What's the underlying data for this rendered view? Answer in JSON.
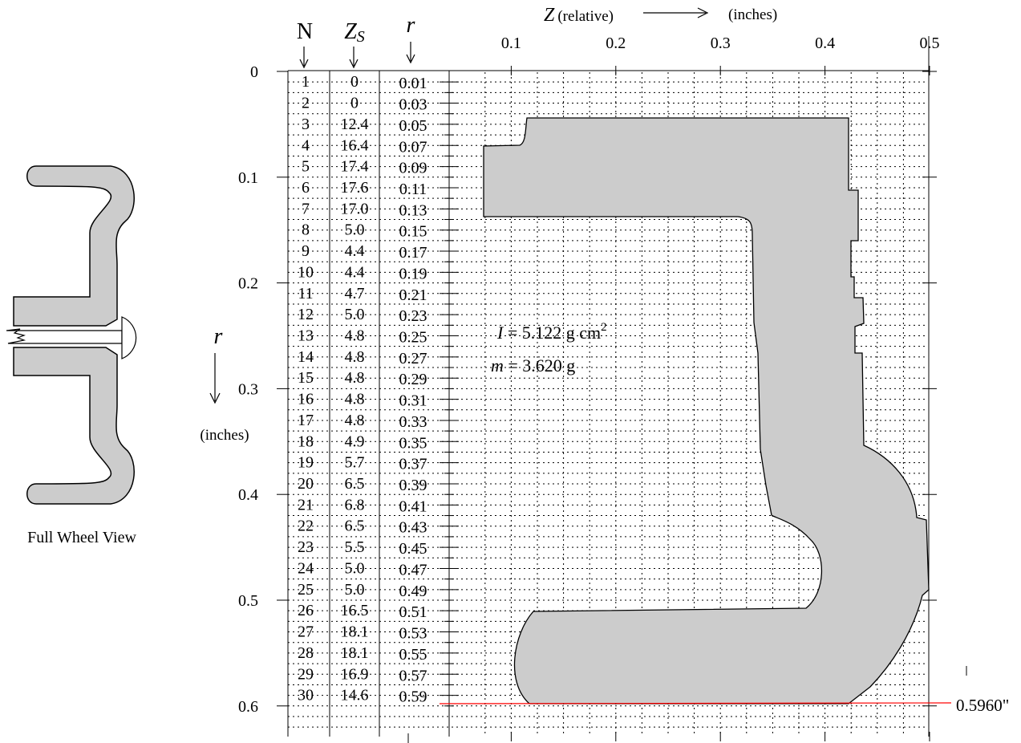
{
  "header": {
    "col_n": "N",
    "col_zs_main": "Z",
    "col_zs_sub": "S",
    "col_r": "r",
    "z_label_main": "Z",
    "z_label_sub": "(relative)",
    "z_units": "(inches)"
  },
  "side_view": {
    "caption": "Full Wheel View"
  },
  "r_axis": {
    "label": "r",
    "units": "(inches)"
  },
  "z_ticks": [
    "0.1",
    "0.2",
    "0.3",
    "0.4",
    "0.5"
  ],
  "r_ticks": [
    "0",
    "0.1",
    "0.2",
    "0.3",
    "0.4",
    "0.5",
    "0.6"
  ],
  "annotations": {
    "inertia_var": "I",
    "inertia_value": " = 5.122 g cm",
    "inertia_exp": "2",
    "mass_var": "m",
    "mass_value": " = 3.620 g",
    "max_radius": "0.5960\""
  },
  "colors": {
    "fill": "#cccccc",
    "stroke": "#000000",
    "marker": "#ff0000",
    "grid": "#000000"
  },
  "table": [
    {
      "n": "1",
      "zs": "0",
      "r": "0.01"
    },
    {
      "n": "2",
      "zs": "0",
      "r": "0.03"
    },
    {
      "n": "3",
      "zs": "12.4",
      "r": "0.05"
    },
    {
      "n": "4",
      "zs": "16.4",
      "r": "0.07"
    },
    {
      "n": "5",
      "zs": "17.4",
      "r": "0.09"
    },
    {
      "n": "6",
      "zs": "17.6",
      "r": "0.11"
    },
    {
      "n": "7",
      "zs": "17.0",
      "r": "0.13"
    },
    {
      "n": "8",
      "zs": "5.0",
      "r": "0.15"
    },
    {
      "n": "9",
      "zs": "4.4",
      "r": "0.17"
    },
    {
      "n": "10",
      "zs": "4.4",
      "r": "0.19"
    },
    {
      "n": "11",
      "zs": "4.7",
      "r": "0.21"
    },
    {
      "n": "12",
      "zs": "5.0",
      "r": "0.23"
    },
    {
      "n": "13",
      "zs": "4.8",
      "r": "0.25"
    },
    {
      "n": "14",
      "zs": "4.8",
      "r": "0.27"
    },
    {
      "n": "15",
      "zs": "4.8",
      "r": "0.29"
    },
    {
      "n": "16",
      "zs": "4.8",
      "r": "0.31"
    },
    {
      "n": "17",
      "zs": "4.8",
      "r": "0.33"
    },
    {
      "n": "18",
      "zs": "4.9",
      "r": "0.35"
    },
    {
      "n": "19",
      "zs": "5.7",
      "r": "0.37"
    },
    {
      "n": "20",
      "zs": "6.5",
      "r": "0.39"
    },
    {
      "n": "21",
      "zs": "6.8",
      "r": "0.41"
    },
    {
      "n": "22",
      "zs": "6.5",
      "r": "0.43"
    },
    {
      "n": "23",
      "zs": "5.5",
      "r": "0.45"
    },
    {
      "n": "24",
      "zs": "5.0",
      "r": "0.47"
    },
    {
      "n": "25",
      "zs": "5.0",
      "r": "0.49"
    },
    {
      "n": "26",
      "zs": "16.5",
      "r": "0.51"
    },
    {
      "n": "27",
      "zs": "18.1",
      "r": "0.53"
    },
    {
      "n": "28",
      "zs": "18.1",
      "r": "0.55"
    },
    {
      "n": "29",
      "zs": "16.9",
      "r": "0.57"
    },
    {
      "n": "30",
      "zs": "14.6",
      "r": "0.59"
    }
  ]
}
